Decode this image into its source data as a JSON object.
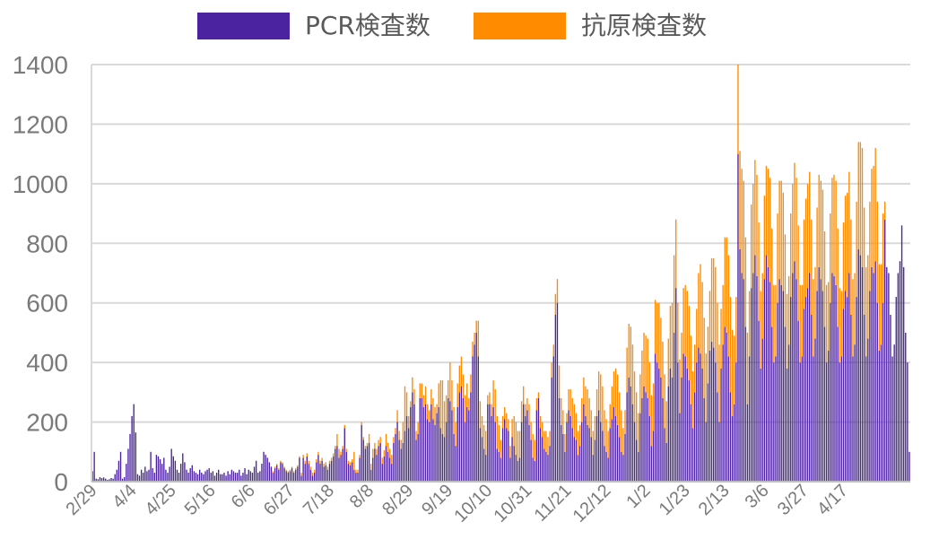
{
  "chart_data": {
    "type": "bar",
    "stacked": true,
    "legend": {
      "placement": "top-center",
      "items": [
        {
          "label": "PCR検査数",
          "color": "#4b22a0"
        },
        {
          "label": "抗原検査数",
          "color": "#ff8c00"
        }
      ]
    },
    "ylim": [
      0,
      1400
    ],
    "yticks": [
      "0",
      "200",
      "400",
      "600",
      "800",
      "1000",
      "1200",
      "1400"
    ],
    "grid": true,
    "xtick_labels": [
      "2/29",
      "4/4",
      "4/25",
      "5/16",
      "6/6",
      "6/27",
      "7/18",
      "8/8",
      "8/29",
      "9/19",
      "10/10",
      "10/31",
      "11/21",
      "12/12",
      "1/2",
      "1/23",
      "2/13",
      "3/6",
      "3/27",
      "4/17"
    ],
    "x_start": "2/29",
    "x_end": "5/2",
    "series": [
      {
        "name": "PCR検査数",
        "color": "#4b22a0",
        "values": [
          35,
          100,
          10,
          8,
          15,
          12,
          14,
          10,
          6,
          8,
          12,
          10,
          25,
          40,
          70,
          100,
          10,
          15,
          60,
          110,
          160,
          220,
          260,
          165,
          25,
          20,
          40,
          30,
          50,
          35,
          40,
          100,
          45,
          30,
          90,
          85,
          75,
          60,
          80,
          40,
          30,
          50,
          110,
          85,
          70,
          40,
          30,
          60,
          95,
          65,
          40,
          30,
          45,
          55,
          35,
          30,
          25,
          40,
          30,
          25,
          35,
          40,
          45,
          30,
          35,
          20,
          30,
          40,
          25,
          25,
          30,
          20,
          35,
          25,
          40,
          35,
          30,
          30,
          40,
          20,
          30,
          45,
          25,
          40,
          35,
          30,
          50,
          70,
          30,
          35,
          60,
          100,
          90,
          80,
          65,
          50,
          30,
          45,
          55,
          40,
          65,
          60,
          45,
          35,
          30,
          35,
          45,
          30,
          40,
          50,
          80,
          20,
          80,
          60,
          85,
          60,
          40,
          20,
          30,
          65,
          90,
          60,
          70,
          50,
          55,
          40,
          60,
          70,
          85,
          110,
          120,
          80,
          90,
          110,
          180,
          100,
          60,
          55,
          65,
          40,
          30,
          30,
          80,
          190,
          140,
          110,
          120,
          130,
          40,
          80,
          110,
          90,
          120,
          130,
          60,
          85,
          120,
          100,
          80,
          60,
          130,
          160,
          200,
          140,
          110,
          130,
          170,
          220,
          180,
          250,
          300,
          260,
          140,
          160,
          280,
          280,
          250,
          260,
          210,
          200,
          260,
          210,
          190,
          230,
          250,
          180,
          160,
          150,
          200,
          280,
          270,
          240,
          160,
          120,
          250,
          300,
          320,
          280,
          200,
          250,
          240,
          300,
          420,
          460,
          500,
          420,
          180,
          150,
          110,
          90,
          260,
          260,
          220,
          250,
          200,
          110,
          100,
          80,
          180,
          210,
          180,
          170,
          80,
          150,
          120,
          90,
          70,
          80,
          200,
          260,
          220,
          240,
          190,
          140,
          80,
          70,
          240,
          280,
          180,
          150,
          110,
          100,
          90,
          120,
          350,
          420,
          560,
          600,
          280,
          190,
          160,
          100,
          200,
          240,
          220,
          180,
          150,
          140,
          90,
          120,
          200,
          260,
          220,
          190,
          180,
          150,
          90,
          140,
          220,
          240,
          200,
          170,
          120,
          100,
          80,
          180,
          210,
          250,
          220,
          190,
          150,
          100,
          90,
          160,
          300,
          350,
          320,
          260,
          200,
          140,
          100,
          230,
          280,
          320,
          300,
          280,
          220,
          120,
          170,
          430,
          400,
          380,
          350,
          280,
          180,
          130,
          320,
          380,
          350,
          500,
          650,
          400,
          230,
          350,
          430,
          420,
          380,
          340,
          260,
          180,
          300,
          400,
          450,
          430,
          380,
          280,
          200,
          330,
          440,
          470,
          450,
          400,
          300,
          200,
          380,
          460,
          520,
          500,
          420,
          300,
          220,
          260,
          400,
          1100,
          780,
          700,
          680,
          520,
          260,
          420,
          650,
          700,
          760,
          690,
          540,
          380,
          480,
          680,
          760,
          720,
          670,
          520,
          400,
          420,
          600,
          680,
          660,
          640,
          520,
          380,
          460,
          620,
          700,
          740,
          680,
          540,
          400,
          420,
          580,
          620,
          650,
          700,
          560,
          420,
          480,
          640,
          720,
          680,
          640,
          520,
          400,
          440,
          600,
          700,
          690,
          660,
          520,
          400,
          420,
          580,
          640,
          620,
          700,
          560,
          420,
          460,
          620,
          780,
          760,
          720,
          560,
          420,
          480,
          640,
          720,
          700,
          740,
          600,
          440,
          460,
          600,
          880,
          720,
          700,
          560,
          420,
          460,
          620,
          700,
          740,
          860,
          720,
          500,
          400,
          100
        ]
      },
      {
        "name": "抗原検査数",
        "color": "#ff8c00",
        "values": [
          0,
          0,
          0,
          0,
          0,
          0,
          0,
          0,
          0,
          0,
          0,
          0,
          0,
          0,
          0,
          0,
          0,
          0,
          0,
          0,
          0,
          0,
          0,
          0,
          0,
          0,
          0,
          0,
          0,
          0,
          0,
          0,
          0,
          0,
          0,
          0,
          0,
          0,
          0,
          0,
          0,
          0,
          0,
          0,
          0,
          0,
          0,
          0,
          0,
          0,
          0,
          0,
          0,
          0,
          0,
          0,
          0,
          0,
          0,
          0,
          0,
          0,
          0,
          0,
          0,
          0,
          0,
          0,
          0,
          0,
          0,
          0,
          0,
          0,
          0,
          0,
          0,
          0,
          0,
          0,
          0,
          0,
          0,
          0,
          0,
          0,
          0,
          0,
          0,
          0,
          0,
          0,
          0,
          0,
          0,
          0,
          5,
          5,
          5,
          5,
          5,
          5,
          5,
          5,
          5,
          5,
          5,
          5,
          5,
          5,
          5,
          10,
          10,
          10,
          10,
          10,
          10,
          10,
          10,
          10,
          10,
          10,
          10,
          10,
          10,
          10,
          10,
          10,
          10,
          10,
          40,
          30,
          10,
          10,
          10,
          10,
          10,
          10,
          10,
          60,
          10,
          10,
          10,
          10,
          10,
          10,
          10,
          30,
          20,
          30,
          20,
          20,
          20,
          20,
          20,
          20,
          40,
          30,
          30,
          30,
          20,
          20,
          40,
          30,
          30,
          70,
          150,
          80,
          40,
          20,
          50,
          50,
          30,
          40,
          50,
          50,
          40,
          60,
          50,
          40,
          50,
          70,
          60,
          30,
          80,
          160,
          180,
          120,
          90,
          60,
          130,
          100,
          90,
          80,
          80,
          90,
          100,
          80,
          90,
          80,
          40,
          60,
          50,
          40,
          40,
          120,
          90,
          70,
          80,
          80,
          30,
          40,
          40,
          90,
          110,
          110,
          90,
          60,
          40,
          40,
          50,
          40,
          40,
          60,
          100,
          110,
          100,
          90,
          70,
          60,
          40,
          40,
          70,
          60,
          80,
          70,
          40,
          20,
          40,
          50,
          60,
          70,
          60,
          50,
          50,
          40,
          70,
          80,
          110,
          90,
          80,
          60,
          30,
          70,
          90,
          100,
          110,
          90,
          80,
          70,
          80,
          90,
          100,
          120,
          100,
          90,
          80,
          80,
          90,
          130,
          160,
          150,
          120,
          110,
          90,
          80,
          110,
          120,
          160,
          170,
          150,
          140,
          90,
          80,
          150,
          180,
          200,
          200,
          170,
          160,
          130,
          130,
          160,
          180,
          190,
          200,
          180,
          170,
          160,
          180,
          200,
          220,
          200,
          190,
          180,
          140,
          160,
          210,
          250,
          260,
          230,
          200,
          180,
          150,
          220,
          240,
          260,
          250,
          230,
          190,
          160,
          180,
          250,
          300,
          290,
          270,
          230,
          190,
          200,
          280,
          300,
          320,
          300,
          260,
          200,
          200,
          300,
          320,
          340,
          320,
          290,
          230,
          220,
          300,
          330,
          350,
          330,
          300,
          240,
          220,
          280,
          300,
          320,
          340,
          330,
          260,
          220,
          280,
          300,
          330,
          350,
          330,
          260,
          240,
          300,
          330,
          350,
          330,
          310,
          250,
          230,
          280,
          300,
          330,
          340,
          320,
          260,
          240,
          300,
          330,
          350,
          340,
          320,
          260,
          240,
          280,
          310,
          330,
          340,
          320,
          260,
          230,
          300,
          320,
          340,
          350,
          330,
          250,
          220,
          290,
          320,
          350,
          340,
          320,
          260,
          240,
          320,
          360,
          380,
          400,
          360,
          300,
          280,
          300,
          330,
          360,
          380,
          340,
          290,
          270,
          300,
          60
        ]
      }
    ]
  }
}
